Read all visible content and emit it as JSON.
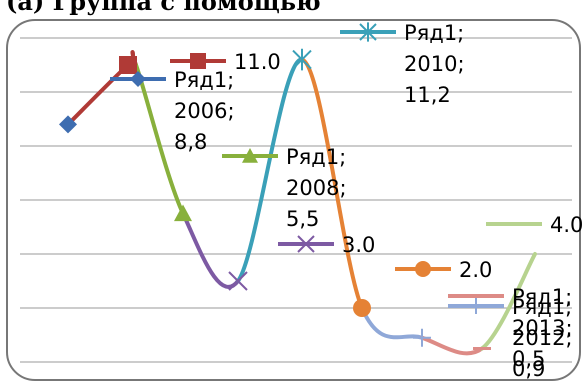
{
  "header_fragment": "(а) Группа с помощью",
  "chart_data": {
    "type": "line",
    "title": "",
    "xlabel": "",
    "ylabel": "",
    "ylim": [
      0,
      12
    ],
    "x": [
      "2006",
      "2006.5",
      "2007",
      "2008",
      "2009",
      "2010",
      "2011",
      "2012",
      "2013",
      "2014"
    ],
    "values": [
      8.8,
      11.0,
      11.0,
      5.5,
      3.0,
      11.2,
      2.0,
      0.9,
      0.5,
      4.0
    ],
    "segment_colors": [
      "#b03a36",
      "#b03a36",
      "#88b03c",
      "#7d5aa3",
      "#3aa0b8",
      "#e58235",
      "#8fa8d8",
      "#dd8b86",
      "#b7d38f"
    ],
    "markers": [
      {
        "shape": "diamond",
        "color": "#3e6db0"
      },
      {
        "shape": "square",
        "color": "#b03a36"
      },
      {
        "shape": "none",
        "color": "#b03a36"
      },
      {
        "shape": "triangle",
        "color": "#88b03c"
      },
      {
        "shape": "x",
        "color": "#7d5aa3"
      },
      {
        "shape": "star",
        "color": "#3aa0b8"
      },
      {
        "shape": "circle",
        "color": "#e58235"
      },
      {
        "shape": "plus",
        "color": "#8fa8d8"
      },
      {
        "shape": "dash",
        "color": "#dd8b86"
      },
      {
        "shape": "none",
        "color": "#b7d38f"
      }
    ],
    "grid": true,
    "legend_entries": [
      {
        "lines": [
          "11.0"
        ],
        "color": "#b03a36",
        "marker": "square"
      },
      {
        "lines": [
          "Ряд1;",
          "2006;",
          "8,8"
        ],
        "color": "#3e6db0",
        "marker": "diamond"
      },
      {
        "lines": [
          "Ряд1;",
          "2008;",
          "5,5"
        ],
        "color": "#88b03c",
        "marker": "triangle"
      },
      {
        "lines": [
          "3.0"
        ],
        "color": "#7d5aa3",
        "marker": "x"
      },
      {
        "lines": [
          "Ряд1;",
          "2010;",
          "11,2"
        ],
        "color": "#3aa0b8",
        "marker": "star"
      },
      {
        "lines": [
          "2.0"
        ],
        "color": "#e58235",
        "marker": "circle"
      },
      {
        "lines": [
          "4.0"
        ],
        "color": "#b7d38f",
        "marker": "none"
      },
      {
        "lines": [
          "Ряд1;",
          "2013;",
          "0,5"
        ],
        "color": "#dd8b86",
        "marker": "dash"
      },
      {
        "lines": [
          "Ряд1;",
          "2012;",
          "0,9"
        ],
        "color": "#8fa8d8",
        "marker": "plus"
      }
    ]
  }
}
